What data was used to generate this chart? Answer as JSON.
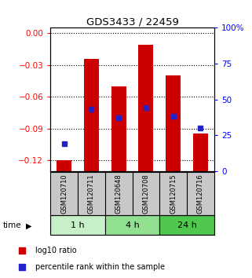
{
  "title": "GDS3433 / 22459",
  "samples": [
    "GSM120710",
    "GSM120711",
    "GSM120648",
    "GSM120708",
    "GSM120715",
    "GSM120716"
  ],
  "groups": [
    {
      "label": "1 h",
      "indices": [
        0,
        1
      ],
      "color": "#c8f0c8"
    },
    {
      "label": "4 h",
      "indices": [
        2,
        3
      ],
      "color": "#90e090"
    },
    {
      "label": "24 h",
      "indices": [
        4,
        5
      ],
      "color": "#50c850"
    }
  ],
  "log10_ratio": [
    -0.12,
    -0.024,
    -0.05,
    -0.011,
    -0.04,
    -0.095
  ],
  "percentile_rank": [
    19,
    43,
    37,
    44,
    38,
    30
  ],
  "ymin": -0.13,
  "ymax": 0.005,
  "ylim_left": [
    -0.13,
    0.005
  ],
  "ylim_right": [
    0,
    100
  ],
  "yticks_left": [
    -0.12,
    -0.09,
    -0.06,
    -0.03,
    0.0
  ],
  "yticks_right": [
    0,
    25,
    50,
    75,
    100
  ],
  "bar_color": "#cc0000",
  "dot_color": "#2222cc",
  "bg_color": "#c8c8c8",
  "bar_bottom": -0.13
}
